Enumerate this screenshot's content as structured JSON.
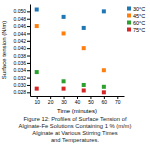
{
  "chart_data": {
    "type": "scatter",
    "title": "Figure 12: Profiles of Surface Tension of\nAlginate-Fe Solutions Containing 1 % (m/m)\nAlginate at Various Stirring Times\nand Temperatures.",
    "xlabel": "Time (minutes)",
    "ylabel": "Surface tension (N/m)",
    "xlim": [
      5,
      75
    ],
    "ylim": [
      0.027,
      0.052
    ],
    "xticks": [
      10,
      20,
      30,
      40,
      50,
      60,
      70
    ],
    "yticks": [
      0.028,
      {
        "value": 0.03,
        "label": "0.030"
      },
      0.032,
      0.034,
      0.036,
      0.038,
      {
        "value": 0.04,
        "label": "0.040"
      },
      0.042,
      0.044,
      0.046,
      0.048,
      {
        "value": 0.05,
        "label": "0.050"
      }
    ],
    "x": [
      10,
      30,
      45,
      60
    ],
    "series": [
      {
        "name": "30°C",
        "marker": "square",
        "values": [
          0.0505,
          0.0485,
          0.0455,
          0.05
        ]
      },
      {
        "name": "45°C",
        "marker": "square",
        "values": [
          0.046,
          0.044,
          0.04,
          0.034
        ]
      },
      {
        "name": "60°C",
        "marker": "square",
        "values": [
          0.0335,
          0.031,
          0.03,
          0.0295
        ]
      },
      {
        "name": "75°C",
        "marker": "square",
        "values": [
          0.029,
          0.029,
          0.0285,
          0.028
        ]
      }
    ],
    "legend": "upper right",
    "grid": false
  }
}
